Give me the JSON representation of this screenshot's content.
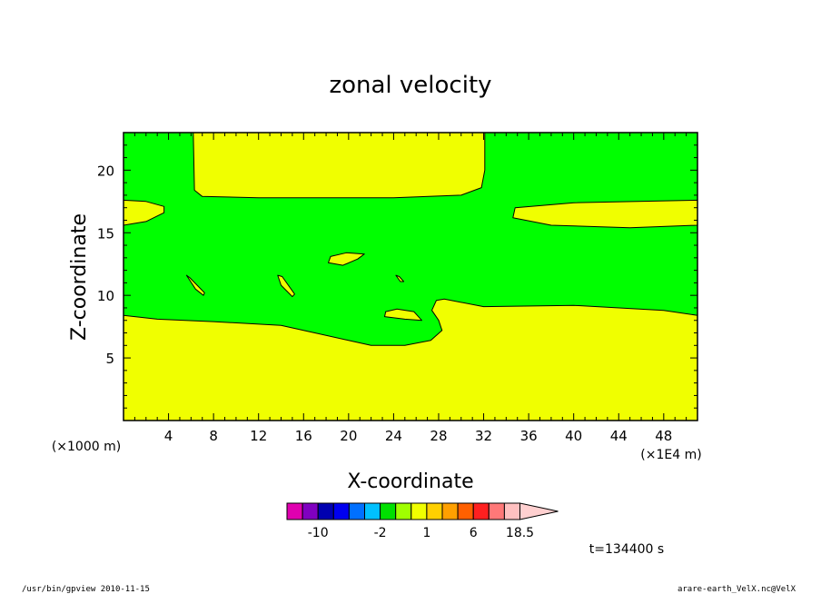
{
  "chart_data": {
    "type": "heatmap",
    "title": "zonal velocity",
    "xlabel": "X-coordinate",
    "ylabel": "Z-coordinate",
    "x_unit_label": "(×1000 m)",
    "x_secondary_unit_label": "(×1E4 m)",
    "xlim": [
      0,
      51
    ],
    "ylim": [
      0,
      23
    ],
    "xticks": [
      "4",
      "8",
      "12",
      "16",
      "20",
      "24",
      "28",
      "32",
      "36",
      "40",
      "44",
      "48"
    ],
    "yticks": [
      "5",
      "10",
      "15",
      "20"
    ],
    "xtick_values": [
      4,
      8,
      12,
      16,
      20,
      24,
      28,
      32,
      36,
      40,
      44,
      48
    ],
    "ytick_values": [
      5,
      10,
      15,
      20
    ],
    "background_region": {
      "color": "#00ff00"
    },
    "regions": [
      {
        "name": "lower-yellow",
        "color": "#f0ff00",
        "points": [
          [
            0,
            0
          ],
          [
            51,
            0
          ],
          [
            51,
            8.4
          ],
          [
            48,
            8.8
          ],
          [
            40,
            9.2
          ],
          [
            32,
            9.1
          ],
          [
            28.5,
            9.7
          ],
          [
            27.8,
            9.6
          ],
          [
            27.4,
            8.8
          ],
          [
            28,
            8.0
          ],
          [
            28.3,
            7.2
          ],
          [
            27.3,
            6.4
          ],
          [
            25,
            6.0
          ],
          [
            22,
            6.0
          ],
          [
            20,
            6.4
          ],
          [
            17,
            7.0
          ],
          [
            14,
            7.6
          ],
          [
            8,
            7.9
          ],
          [
            3,
            8.1
          ],
          [
            0,
            8.4
          ]
        ]
      },
      {
        "name": "top-yellow",
        "color": "#f0ff00",
        "points": [
          [
            6.2,
            23
          ],
          [
            6.3,
            18.4
          ],
          [
            7,
            17.9
          ],
          [
            12,
            17.8
          ],
          [
            24,
            17.8
          ],
          [
            30,
            18.0
          ],
          [
            31.8,
            18.6
          ],
          [
            32.1,
            20
          ],
          [
            32.1,
            23
          ]
        ]
      },
      {
        "name": "left-band",
        "color": "#f0ff00",
        "points": [
          [
            0,
            15.6
          ],
          [
            2,
            15.9
          ],
          [
            3.6,
            16.6
          ],
          [
            3.6,
            17.1
          ],
          [
            2,
            17.5
          ],
          [
            0,
            17.6
          ]
        ]
      },
      {
        "name": "right-band",
        "color": "#f0ff00",
        "points": [
          [
            51,
            15.6
          ],
          [
            45,
            15.4
          ],
          [
            38,
            15.6
          ],
          [
            34.6,
            16.2
          ],
          [
            34.8,
            17.0
          ],
          [
            40,
            17.4
          ],
          [
            51,
            17.6
          ]
        ]
      },
      {
        "name": "blob-1",
        "color": "#f0ff00",
        "points": [
          [
            18.2,
            12.6
          ],
          [
            19.5,
            12.4
          ],
          [
            20.8,
            12.9
          ],
          [
            21.4,
            13.3
          ],
          [
            19.8,
            13.4
          ],
          [
            18.4,
            13.1
          ]
        ]
      },
      {
        "name": "blob-2",
        "color": "#f0ff00",
        "points": [
          [
            23.2,
            8.3
          ],
          [
            25,
            8.1
          ],
          [
            26.5,
            8.0
          ],
          [
            25.8,
            8.7
          ],
          [
            24.3,
            8.9
          ],
          [
            23.3,
            8.7
          ]
        ]
      },
      {
        "name": "streak-1",
        "color": "#f0ff00",
        "points": [
          [
            5.6,
            11.6
          ],
          [
            5.9,
            11.4
          ],
          [
            7.2,
            10.2
          ],
          [
            7.1,
            10.0
          ],
          [
            6.4,
            10.5
          ]
        ]
      },
      {
        "name": "streak-2",
        "color": "#f0ff00",
        "points": [
          [
            13.7,
            11.6
          ],
          [
            14.1,
            11.5
          ],
          [
            15.2,
            10.1
          ],
          [
            15.0,
            9.9
          ],
          [
            14.0,
            10.8
          ]
        ]
      },
      {
        "name": "tiny-blob",
        "color": "#f0ff00",
        "points": [
          [
            24.2,
            11.6
          ],
          [
            24.5,
            11.5
          ],
          [
            24.9,
            11.1
          ],
          [
            24.6,
            11.1
          ]
        ]
      }
    ],
    "colorbar": {
      "colors": [
        "#e000b0",
        "#8000c0",
        "#0000b0",
        "#0000f0",
        "#0070ff",
        "#00c0ff",
        "#00e000",
        "#a0ff00",
        "#f0ff00",
        "#ffd000",
        "#ffa000",
        "#ff6000",
        "#ff2020",
        "#ff7878",
        "#ffc0c0",
        "#ffd0d0"
      ],
      "labels": [
        "-10",
        "-2",
        "1",
        "6",
        "18.5"
      ],
      "label_edges": [
        2,
        6,
        9,
        12,
        15
      ]
    },
    "time_label": "t=134400 s"
  },
  "footer": {
    "left": "/usr/bin/gpview   2010-11-15",
    "right": "arare-earth_VelX.nc@VelX"
  }
}
